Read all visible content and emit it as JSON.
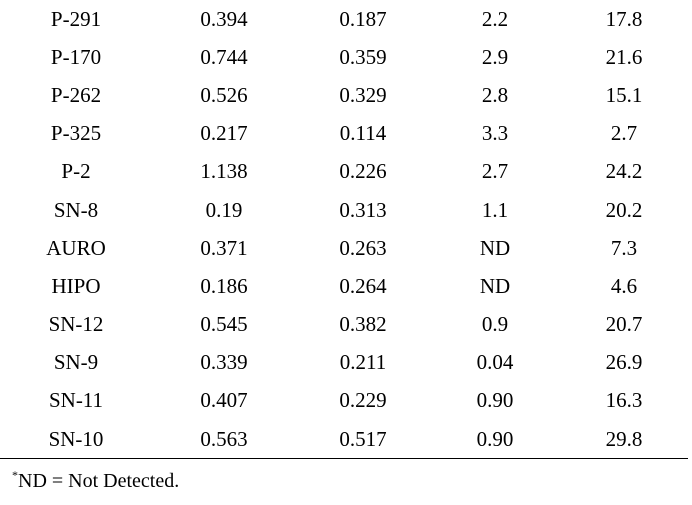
{
  "table": {
    "rows": [
      [
        "P-291",
        "0.394",
        "0.187",
        "2.2",
        "17.8"
      ],
      [
        "P-170",
        "0.744",
        "0.359",
        "2.9",
        "21.6"
      ],
      [
        "P-262",
        "0.526",
        "0.329",
        "2.8",
        "15.1"
      ],
      [
        "P-325",
        "0.217",
        "0.114",
        "3.3",
        "2.7"
      ],
      [
        "P-2",
        "1.138",
        "0.226",
        "2.7",
        "24.2"
      ],
      [
        "SN-8",
        "0.19",
        "0.313",
        "1.1",
        "20.2"
      ],
      [
        "AURO",
        "0.371",
        "0.263",
        "ND",
        "7.3"
      ],
      [
        "HIPO",
        "0.186",
        "0.264",
        "ND",
        "4.6"
      ],
      [
        "SN-12",
        "0.545",
        "0.382",
        "0.9",
        "20.7"
      ],
      [
        "SN-9",
        "0.339",
        "0.211",
        "0.04",
        "26.9"
      ],
      [
        "SN-11",
        "0.407",
        "0.229",
        "0.90",
        "16.3"
      ],
      [
        "SN-10",
        "0.563",
        "0.517",
        "0.90",
        "29.8"
      ]
    ]
  },
  "footnote": {
    "marker": "*",
    "text": "ND = Not Detected."
  }
}
